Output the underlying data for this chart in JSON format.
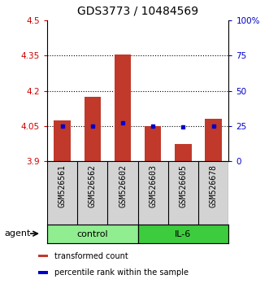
{
  "title": "GDS3773 / 10484569",
  "samples": [
    "GSM526561",
    "GSM526562",
    "GSM526602",
    "GSM526603",
    "GSM526605",
    "GSM526678"
  ],
  "bar_tops": [
    4.075,
    4.175,
    4.355,
    4.05,
    3.975,
    4.082
  ],
  "bar_bottom": 3.9,
  "blue_dots_y": [
    4.05,
    4.05,
    4.063,
    4.05,
    4.046,
    4.05
  ],
  "ylim": [
    3.9,
    4.5
  ],
  "yticks": [
    3.9,
    4.05,
    4.2,
    4.35,
    4.5
  ],
  "ytick_labels": [
    "3.9",
    "4.05",
    "4.2",
    "4.35",
    "4.5"
  ],
  "y2ticks": [
    0,
    25,
    50,
    75,
    100
  ],
  "y2tick_labels": [
    "0",
    "25",
    "50",
    "75",
    "100%"
  ],
  "dotted_lines": [
    4.05,
    4.2,
    4.35
  ],
  "bar_color": "#c0392b",
  "dot_color": "#0000cc",
  "axis_color_left": "#cc0000",
  "axis_color_right": "#0000cc",
  "groups": [
    {
      "label": "control",
      "indices": [
        0,
        1,
        2
      ],
      "color": "#90ee90"
    },
    {
      "label": "IL-6",
      "indices": [
        3,
        4,
        5
      ],
      "color": "#3dcc3d"
    }
  ],
  "agent_label": "agent",
  "legend_items": [
    {
      "color": "#c0392b",
      "label": "transformed count"
    },
    {
      "color": "#0000cc",
      "label": "percentile rank within the sample"
    }
  ],
  "bar_width": 0.55,
  "title_fontsize": 10,
  "tick_fontsize": 7.5,
  "sample_fontsize": 7,
  "group_fontsize": 8,
  "legend_fontsize": 7
}
